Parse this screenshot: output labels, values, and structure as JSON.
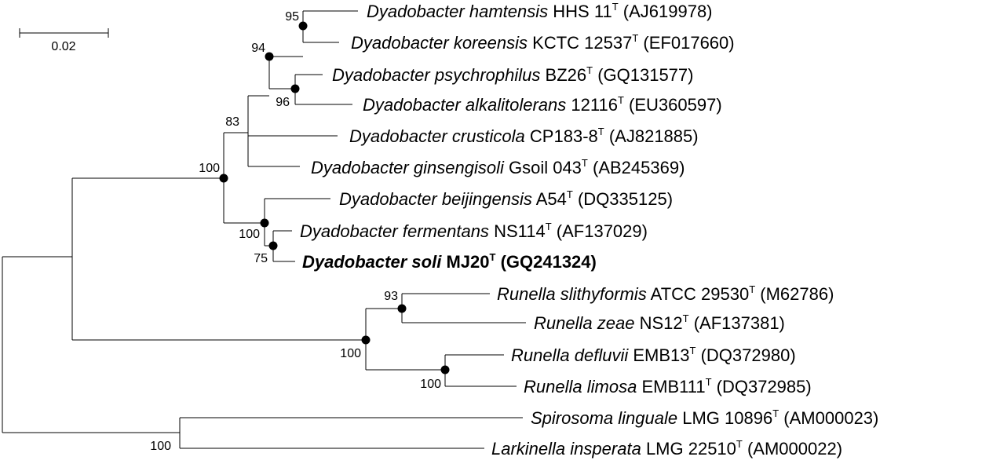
{
  "scale_bar": {
    "label": "0.02"
  },
  "taxa": [
    {
      "id": "d-hamtensis",
      "genus": "Dyadobacter",
      "epithet": "hamtensis",
      "strain": "HHS 11",
      "type_mark": "T",
      "accession": "(AJ619978)",
      "bold": false
    },
    {
      "id": "d-koreensis",
      "genus": "Dyadobacter",
      "epithet": "koreensis",
      "strain": "KCTC 12537",
      "type_mark": "T",
      "accession": "(EF017660)",
      "bold": false
    },
    {
      "id": "d-psychrophilus",
      "genus": "Dyadobacter",
      "epithet": "psychrophilus",
      "strain": "BZ26",
      "type_mark": "T",
      "accession": "(GQ131577)",
      "bold": false
    },
    {
      "id": "d-alkalitolerans",
      "genus": "Dyadobacter",
      "epithet": "alkalitolerans",
      "strain": "12116",
      "type_mark": "T",
      "accession": "(EU360597)",
      "bold": false
    },
    {
      "id": "d-crusticola",
      "genus": "Dyadobacter",
      "epithet": "crusticola",
      "strain": "CP183-8",
      "type_mark": "T",
      "accession": "(AJ821885)",
      "bold": false
    },
    {
      "id": "d-ginsengisoli",
      "genus": "Dyadobacter",
      "epithet": "ginsengisoli",
      "strain": "Gsoil 043",
      "type_mark": "T",
      "accession": "(AB245369)",
      "bold": false
    },
    {
      "id": "d-beijingensis",
      "genus": "Dyadobacter",
      "epithet": "beijingensis",
      "strain": "A54",
      "type_mark": "T",
      "accession": "(DQ335125)",
      "bold": false
    },
    {
      "id": "d-fermentans",
      "genus": "Dyadobacter",
      "epithet": "fermentans",
      "strain": "NS114",
      "type_mark": "T",
      "accession": "(AF137029)",
      "bold": false
    },
    {
      "id": "d-soli",
      "genus": "Dyadobacter",
      "epithet": "soli",
      "strain": "MJ20",
      "type_mark": "T",
      "accession": "(GQ241324)",
      "bold": true
    },
    {
      "id": "r-slithyformis",
      "genus": "Runella",
      "epithet": "slithyformis",
      "strain": "ATCC 29530",
      "type_mark": "T",
      "accession": "(M62786)",
      "bold": false
    },
    {
      "id": "r-zeae",
      "genus": "Runella",
      "epithet": "zeae",
      "strain": "NS12",
      "type_mark": "T",
      "accession": "(AF137381)",
      "bold": false
    },
    {
      "id": "r-defluvii",
      "genus": "Runella",
      "epithet": "defluvii",
      "strain": "EMB13",
      "type_mark": "T",
      "accession": "(DQ372980)",
      "bold": false
    },
    {
      "id": "r-limosa",
      "genus": "Runella",
      "epithet": "limosa",
      "strain": "EMB111",
      "type_mark": "T",
      "accession": "(DQ372985)",
      "bold": false
    },
    {
      "id": "s-linguale",
      "genus": "Spirosoma",
      "epithet": "linguale",
      "strain": "LMG 10896",
      "type_mark": "T",
      "accession": "(AM000023)",
      "bold": false
    },
    {
      "id": "l-insperata",
      "genus": "Larkinella",
      "epithet": "insperata",
      "strain": "LMG 22510",
      "type_mark": "T",
      "accession": "(AM000022)",
      "bold": false
    }
  ],
  "bootstrap": {
    "hamtensis_koreensis": "95",
    "psychrophilus_alkalitolerans": "96",
    "upper_dyadobacter": "94",
    "crusticola_clade": "83",
    "dyadobacter_genus": "100",
    "beijingensis_clade": "100",
    "fermentans_soli": "75",
    "slithyformis_zeae": "93",
    "runella_genus": "100",
    "defluvii_limosa": "100",
    "spirosoma_larkinella": "100"
  }
}
